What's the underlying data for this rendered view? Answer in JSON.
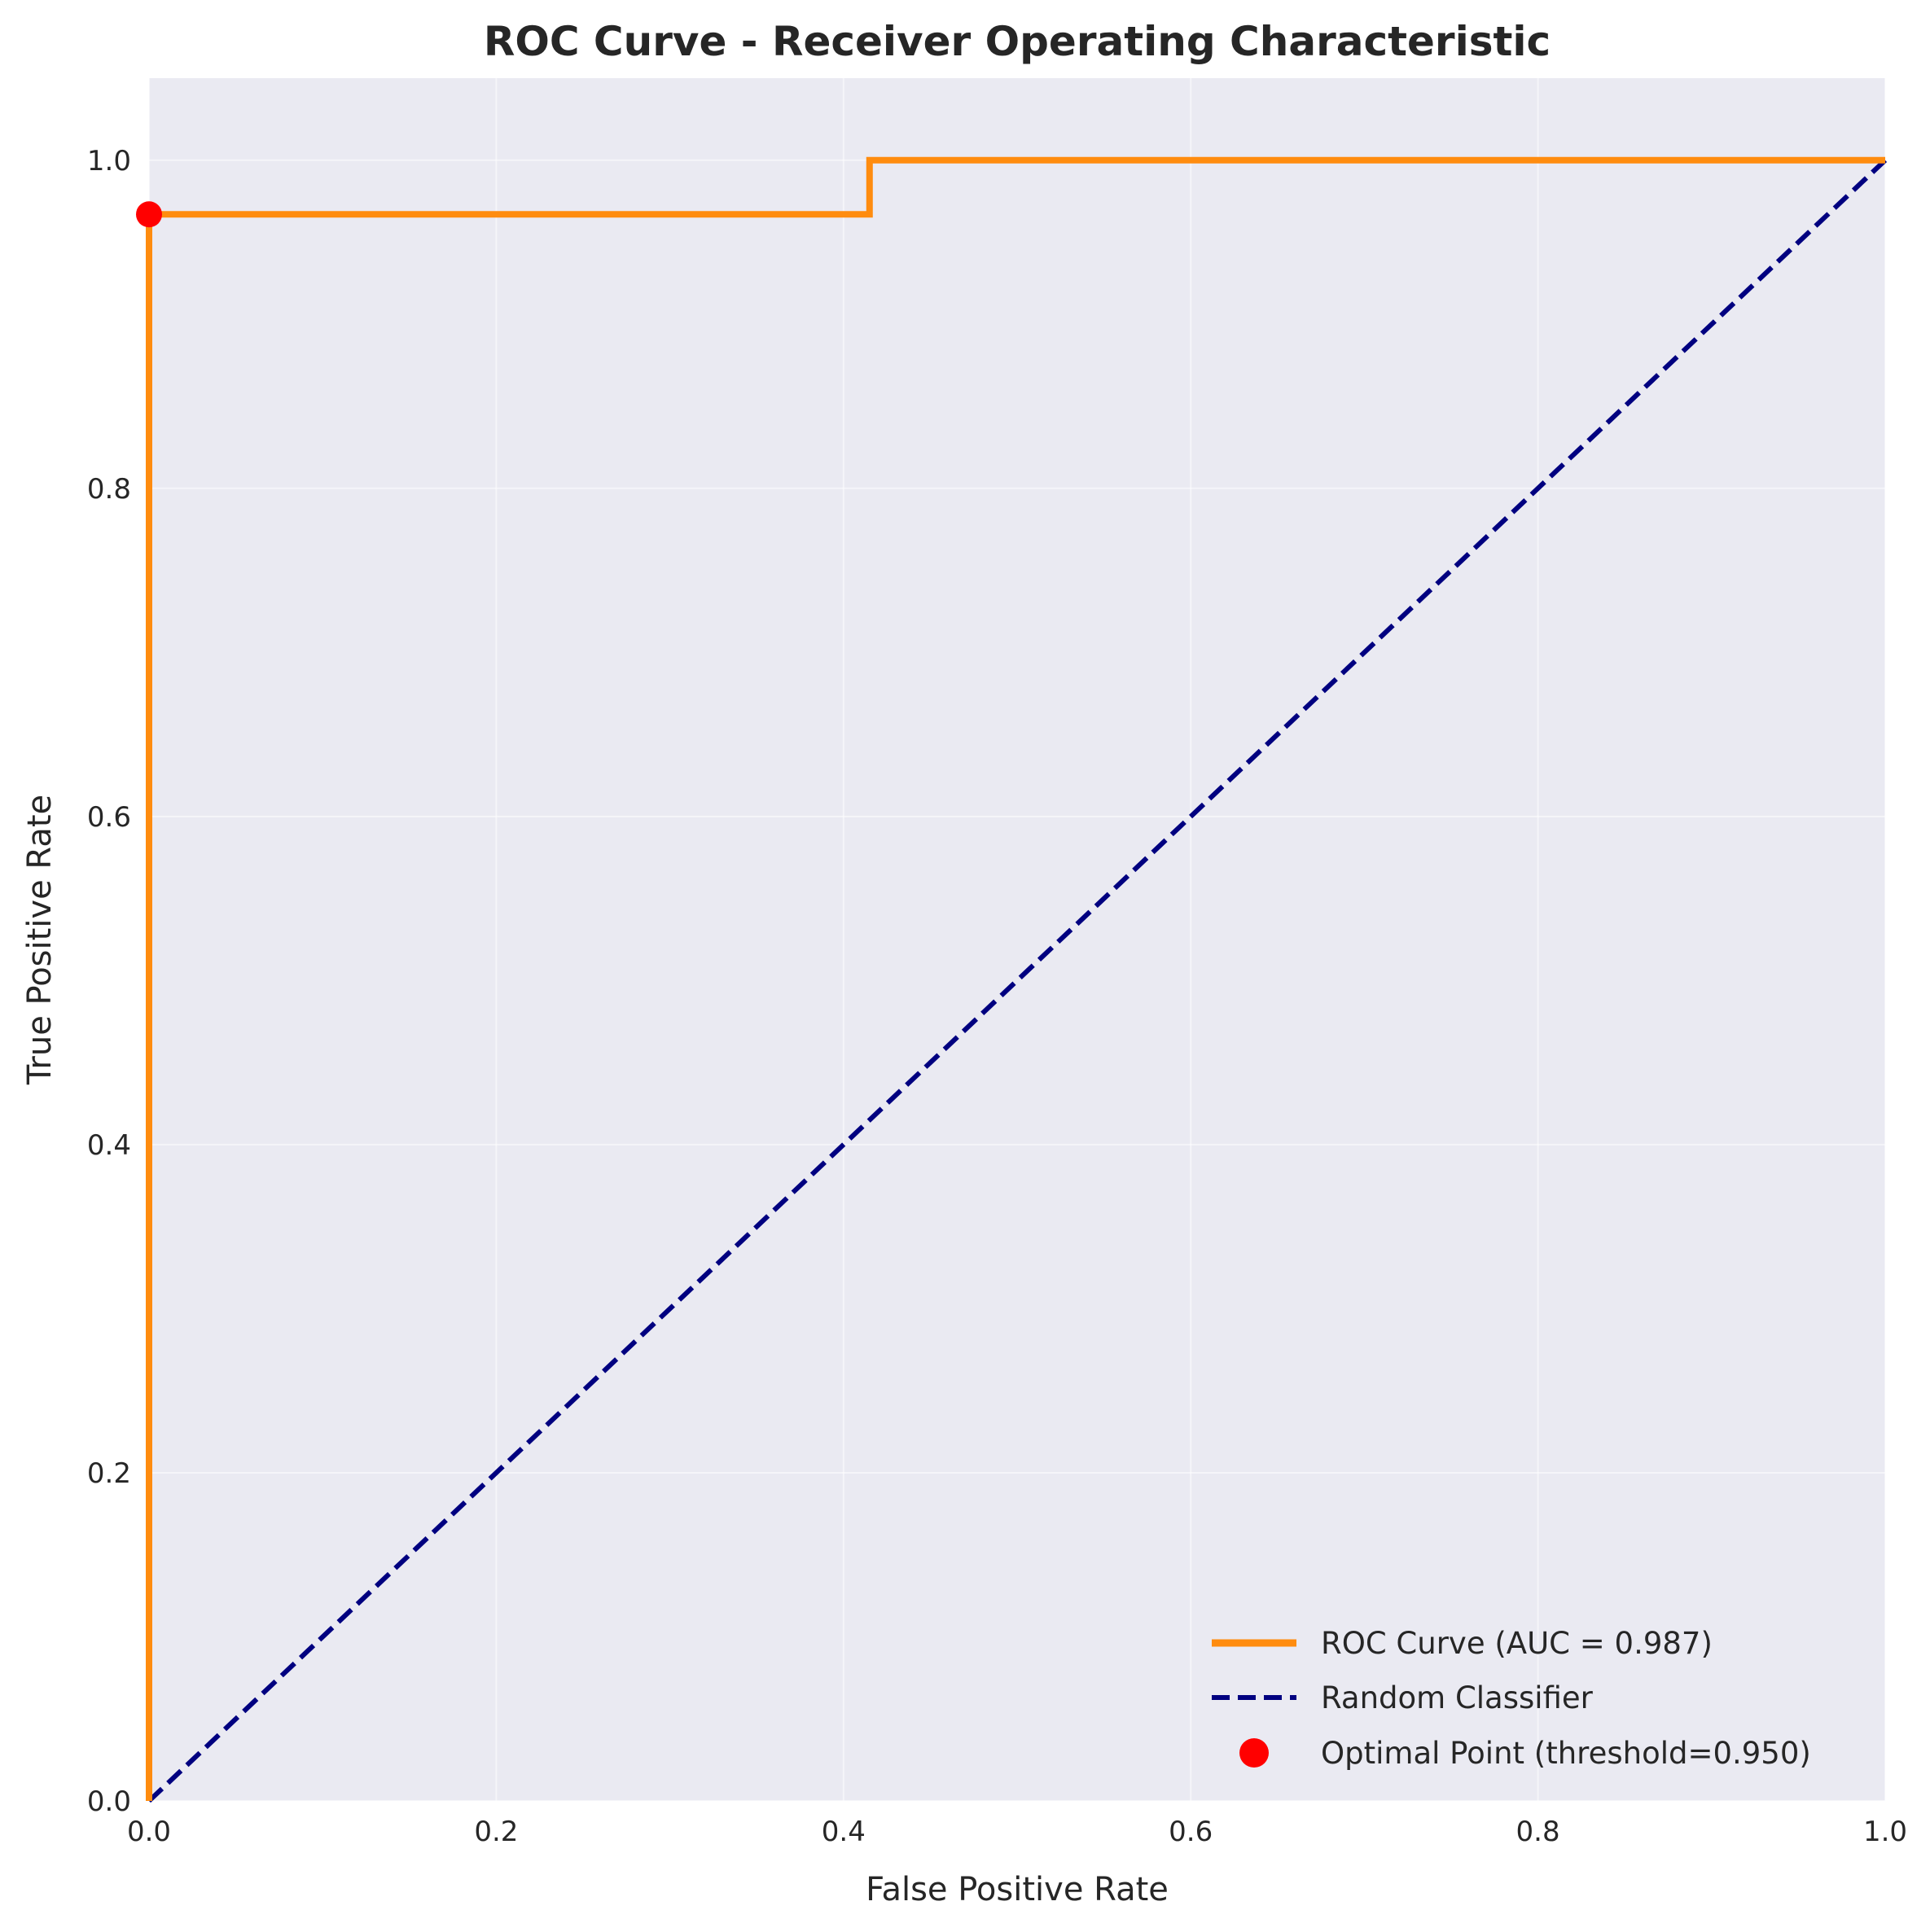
{
  "chart_data": {
    "type": "line",
    "title": "ROC Curve - Receiver Operating Characteristic",
    "xlabel": "False Positive Rate",
    "ylabel": "True Positive Rate",
    "xlim": [
      0.0,
      1.0
    ],
    "ylim": [
      0.0,
      1.05
    ],
    "xticks": [
      "0.0",
      "0.2",
      "0.4",
      "0.6",
      "0.8",
      "1.0"
    ],
    "yticks": [
      "0.0",
      "0.2",
      "0.4",
      "0.6",
      "0.8",
      "1.0"
    ],
    "grid": true,
    "legend_position": "lower right",
    "series": [
      {
        "name": "ROC Curve (AUC = 0.987)",
        "color": "#ff8c0f",
        "style": "solid",
        "x": [
          0.0,
          0.0,
          0.0,
          0.415,
          0.415,
          1.0
        ],
        "y": [
          0.0,
          0.967,
          0.967,
          0.967,
          1.0,
          1.0
        ]
      },
      {
        "name": "Random Classifier",
        "color": "#000080",
        "style": "dashed",
        "x": [
          0.0,
          1.0
        ],
        "y": [
          0.0,
          1.0
        ]
      }
    ],
    "points": [
      {
        "name": "Optimal Point (threshold=0.950)",
        "color": "#ff0000",
        "x": 0.0,
        "y": 0.967
      }
    ]
  }
}
